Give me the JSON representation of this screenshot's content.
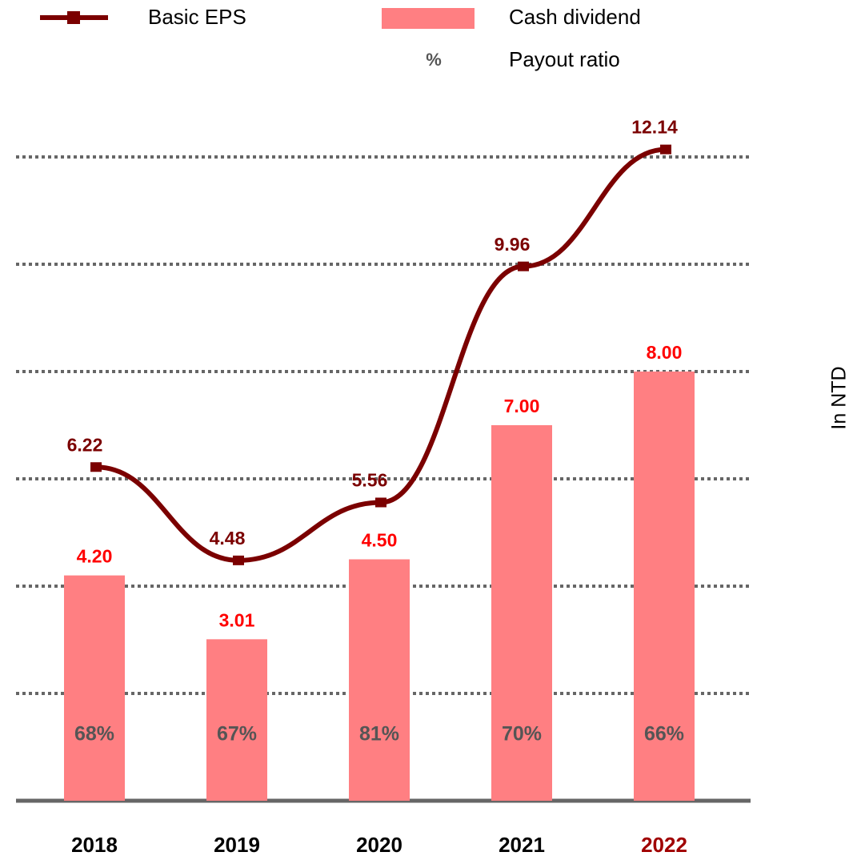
{
  "chart_data": {
    "type": "bar-line",
    "categories": [
      "2018",
      "2019",
      "2020",
      "2021",
      "2022"
    ],
    "category_label_colors": [
      "#000000",
      "#000000",
      "#000000",
      "#000000",
      "#a00000"
    ],
    "series": [
      {
        "name": "Basic EPS",
        "type": "line",
        "color": "#7b0000",
        "values": [
          6.22,
          4.48,
          5.56,
          9.96,
          12.14
        ]
      },
      {
        "name": "Cash dividend",
        "type": "bar",
        "color": "#ff7f82",
        "label_color": "#ff0000",
        "values": [
          4.2,
          3.01,
          4.5,
          7,
          8
        ],
        "value_labels": [
          "4.20",
          "3.01",
          "4.50",
          "7.00",
          "8.00"
        ]
      },
      {
        "name": "Payout ratio",
        "type": "label",
        "symbol": "%",
        "color": "#555555",
        "values": [
          68,
          67,
          81,
          70,
          66
        ],
        "value_labels": [
          "68%",
          "67%",
          "81%",
          "70%",
          "66%"
        ]
      }
    ],
    "y_label": "In NTD",
    "ylim": [
      0,
      12.5
    ],
    "yticks": [
      0,
      2,
      4,
      6,
      8,
      10,
      12
    ],
    "grid": true
  }
}
